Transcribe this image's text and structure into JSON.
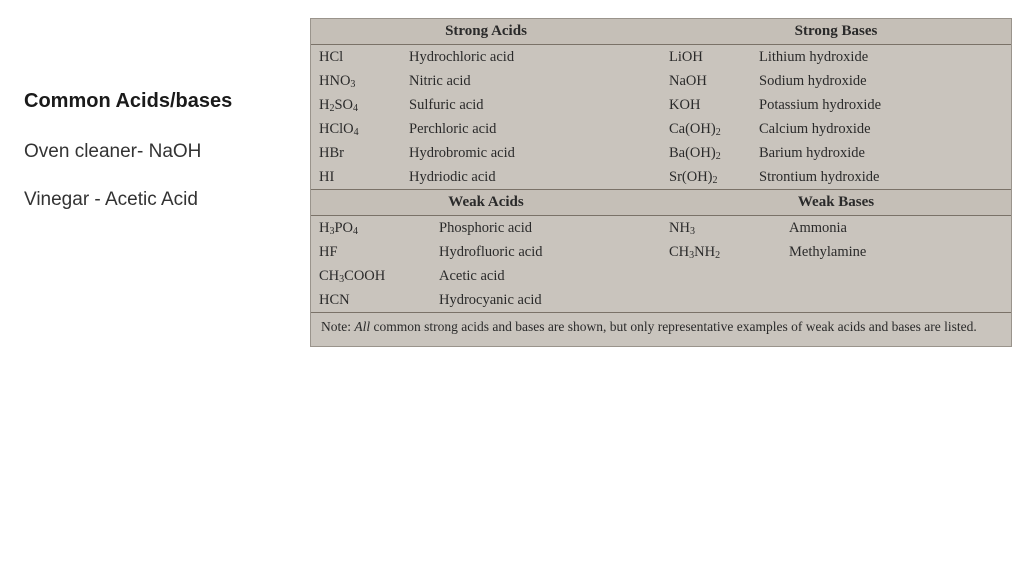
{
  "colors": {
    "page_bg": "#ffffff",
    "book_bg": "#c9c4bd",
    "rule": "#7a7268",
    "text": "#2a2a2a"
  },
  "left": {
    "title": "Common Acids/bases",
    "line1": "Oven cleaner- NaOH",
    "line2": "Vinegar - Acetic Acid"
  },
  "headers": {
    "strong_acids": "Strong Acids",
    "strong_bases": "Strong Bases",
    "weak_acids": "Weak Acids",
    "weak_bases": "Weak Bases"
  },
  "strong_acids": [
    {
      "f": "HCl",
      "n": "Hydrochloric acid"
    },
    {
      "f": "HNO<sub>3</sub>",
      "n": "Nitric acid"
    },
    {
      "f": "H<sub>2</sub>SO<sub>4</sub>",
      "n": "Sulfuric acid"
    },
    {
      "f": "HClO<sub>4</sub>",
      "n": "Perchloric acid"
    },
    {
      "f": "HBr",
      "n": "Hydrobromic acid"
    },
    {
      "f": "HI",
      "n": "Hydriodic acid"
    }
  ],
  "strong_bases": [
    {
      "f": "LiOH",
      "n": "Lithium hydroxide"
    },
    {
      "f": "NaOH",
      "n": "Sodium hydroxide"
    },
    {
      "f": "KOH",
      "n": "Potassium hydroxide"
    },
    {
      "f": "Ca(OH)<sub>2</sub>",
      "n": "Calcium hydroxide"
    },
    {
      "f": "Ba(OH)<sub>2</sub>",
      "n": "Barium hydroxide"
    },
    {
      "f": "Sr(OH)<sub>2</sub>",
      "n": "Strontium hydroxide"
    }
  ],
  "weak_acids": [
    {
      "f": "H<sub>3</sub>PO<sub>4</sub>",
      "n": "Phosphoric acid"
    },
    {
      "f": "HF",
      "n": "Hydrofluoric acid"
    },
    {
      "f": "CH<sub>3</sub>COOH",
      "n": "Acetic acid"
    },
    {
      "f": "HCN",
      "n": "Hydrocyanic acid"
    }
  ],
  "weak_bases": [
    {
      "f": "NH<sub>3</sub>",
      "n": "Ammonia"
    },
    {
      "f": "CH<sub>3</sub>NH<sub>2</sub>",
      "n": "Methylamine"
    }
  ],
  "note_prefix": "Note: ",
  "note_em": "All",
  "note_rest": " common strong acids and bases are shown, but only representative examples of weak acids and bases are listed."
}
